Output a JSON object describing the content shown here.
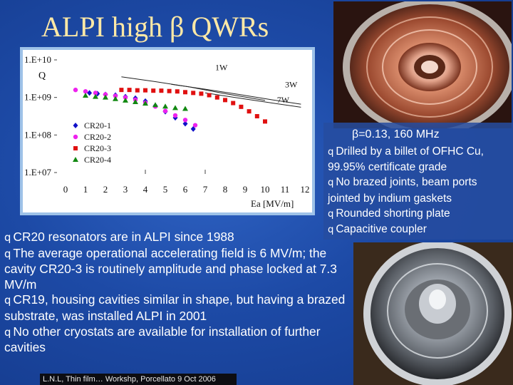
{
  "title": "ALPI high β QWRs",
  "info_box": {
    "spec": "β=0.13, 160 MHz",
    "bullets": [
      "Drilled by a billet of OFHC Cu, 99.95% certificate grade",
      "No brazed joints, beam ports jointed by indium gaskets",
      "Rounded shorting plate",
      "Capacitive coupler"
    ]
  },
  "main_bullets": [
    "CR20 resonators are in ALPI since 1988",
    "The average operational accelerating field is 6 MV/m; the cavity CR20-3 is routinely amplitude and phase locked at 7.3 MV/m",
    "CR19, housing cavities similar in shape, but having a brazed substrate, was installed ALPI in 2001",
    "No other cryostats are available for installation of further cavities"
  ],
  "bullet_glyph": "q",
  "footer": "L.N.L, Thin film… Workshp, Porcellato 9 Oct 2006",
  "chart_data": {
    "type": "scatter",
    "title": "",
    "ylabel": "Q",
    "xlabel": "Ea [MV/m]",
    "x_ticks": [
      "0",
      "1",
      "2",
      "3",
      "4",
      "5",
      "6",
      "7",
      "8",
      "9",
      "10",
      "11",
      "12"
    ],
    "y_ticks": [
      "1.E+07",
      "1.E+08",
      "1.E+09",
      "1.E+10"
    ],
    "xlim": [
      0,
      12
    ],
    "ylim_log10": [
      7,
      10
    ],
    "power_curves": [
      {
        "label": "1W",
        "points": [
          [
            2.8,
            9.55
          ],
          [
            4.5,
            9.42
          ],
          [
            6.2,
            9.28
          ],
          [
            8.0,
            9.1
          ],
          [
            10.0,
            8.92
          ]
        ]
      },
      {
        "label": "3W",
        "points": [
          [
            5.3,
            9.35
          ],
          [
            7.0,
            9.22
          ],
          [
            8.7,
            9.08
          ],
          [
            10.3,
            8.94
          ],
          [
            11.8,
            8.82
          ]
        ]
      },
      {
        "label": "7W",
        "points": [
          [
            7.0,
            9.12
          ],
          [
            8.5,
            9.0
          ],
          [
            10.0,
            8.88
          ],
          [
            11.8,
            8.74
          ]
        ]
      }
    ],
    "series": [
      {
        "name": "CR20-1",
        "marker": "diamond",
        "color": "#1010c8",
        "points": [
          [
            1.2,
            9.12
          ],
          [
            1.6,
            9.1
          ],
          [
            2.0,
            9.08
          ],
          [
            2.5,
            9.06
          ],
          [
            3.0,
            9.02
          ],
          [
            3.5,
            8.98
          ],
          [
            4.0,
            8.9
          ],
          [
            4.5,
            8.78
          ],
          [
            5.0,
            8.62
          ],
          [
            5.5,
            8.46
          ],
          [
            6.0,
            8.3
          ],
          [
            6.4,
            8.16
          ]
        ]
      },
      {
        "name": "CR20-2",
        "marker": "circle",
        "color": "#ee22ee",
        "points": [
          [
            0.5,
            9.2
          ],
          [
            1.0,
            9.16
          ],
          [
            1.5,
            9.12
          ],
          [
            2.0,
            9.08
          ],
          [
            2.5,
            9.04
          ],
          [
            3.0,
            9.0
          ],
          [
            3.5,
            8.94
          ],
          [
            4.0,
            8.86
          ],
          [
            4.5,
            8.76
          ],
          [
            5.0,
            8.64
          ],
          [
            5.5,
            8.52
          ],
          [
            6.0,
            8.4
          ],
          [
            6.5,
            8.26
          ]
        ]
      },
      {
        "name": "CR20-3",
        "marker": "square",
        "color": "#e01010",
        "points": [
          [
            2.8,
            9.2
          ],
          [
            3.2,
            9.2
          ],
          [
            3.6,
            9.19
          ],
          [
            4.0,
            9.19
          ],
          [
            4.4,
            9.18
          ],
          [
            4.8,
            9.18
          ],
          [
            5.2,
            9.17
          ],
          [
            5.6,
            9.16
          ],
          [
            6.0,
            9.14
          ],
          [
            6.4,
            9.12
          ],
          [
            6.8,
            9.1
          ],
          [
            7.2,
            9.06
          ],
          [
            7.6,
            9.0
          ],
          [
            8.0,
            8.93
          ],
          [
            8.4,
            8.85
          ],
          [
            8.8,
            8.75
          ],
          [
            9.2,
            8.63
          ],
          [
            9.6,
            8.5
          ],
          [
            10.0,
            8.36
          ]
        ]
      },
      {
        "name": "CR20-4",
        "marker": "triangle",
        "color": "#118811",
        "points": [
          [
            1.0,
            9.05
          ],
          [
            1.5,
            9.02
          ],
          [
            2.0,
            9.0
          ],
          [
            2.5,
            8.96
          ],
          [
            3.0,
            8.92
          ],
          [
            3.5,
            8.88
          ],
          [
            4.0,
            8.84
          ],
          [
            4.5,
            8.8
          ],
          [
            5.0,
            8.76
          ],
          [
            5.5,
            8.72
          ],
          [
            6.0,
            8.7
          ]
        ]
      }
    ],
    "legend_position": "left-bottom",
    "grid": false
  }
}
